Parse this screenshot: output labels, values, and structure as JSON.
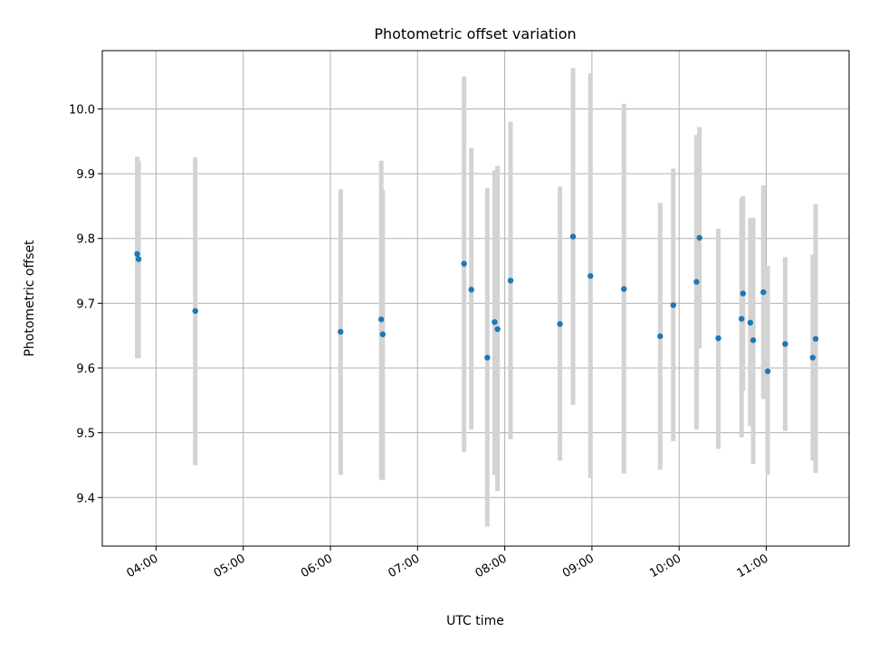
{
  "chart_data": {
    "type": "scatter",
    "title": "Photometric offset variation",
    "xlabel": "UTC time",
    "ylabel": "Photometric offset",
    "x_axis_kind": "time",
    "xlim": [
      "03:23",
      "11:57"
    ],
    "ylim": [
      9.325,
      10.09
    ],
    "x_ticks": [
      "04:00",
      "05:00",
      "06:00",
      "07:00",
      "08:00",
      "09:00",
      "10:00",
      "11:00"
    ],
    "y_ticks": [
      "9.4",
      "9.5",
      "9.6",
      "9.7",
      "9.8",
      "9.9",
      "10.0"
    ],
    "grid": true,
    "colors": {
      "point": "#1f77b4",
      "errorbar": "#d3d3d3"
    },
    "points": [
      {
        "t": "03:47",
        "y": 9.776,
        "lo": 9.615,
        "hi": 9.926
      },
      {
        "t": "03:48",
        "y": 9.768,
        "lo": 9.615,
        "hi": 9.92
      },
      {
        "t": "04:27",
        "y": 9.688,
        "lo": 9.45,
        "hi": 9.925
      },
      {
        "t": "06:07",
        "y": 9.656,
        "lo": 9.435,
        "hi": 9.876
      },
      {
        "t": "06:35",
        "y": 9.675,
        "lo": 9.428,
        "hi": 9.92
      },
      {
        "t": "06:36",
        "y": 9.652,
        "lo": 9.427,
        "hi": 9.875
      },
      {
        "t": "07:32",
        "y": 9.761,
        "lo": 9.47,
        "hi": 10.05
      },
      {
        "t": "07:37",
        "y": 9.721,
        "lo": 9.505,
        "hi": 9.94
      },
      {
        "t": "07:48",
        "y": 9.616,
        "lo": 9.355,
        "hi": 9.878
      },
      {
        "t": "07:53",
        "y": 9.671,
        "lo": 9.435,
        "hi": 9.905
      },
      {
        "t": "07:55",
        "y": 9.66,
        "lo": 9.41,
        "hi": 9.912
      },
      {
        "t": "08:04",
        "y": 9.735,
        "lo": 9.49,
        "hi": 9.98
      },
      {
        "t": "08:38",
        "y": 9.668,
        "lo": 9.457,
        "hi": 9.88
      },
      {
        "t": "08:47",
        "y": 9.803,
        "lo": 9.543,
        "hi": 10.063
      },
      {
        "t": "08:59",
        "y": 9.742,
        "lo": 9.43,
        "hi": 10.055
      },
      {
        "t": "09:22",
        "y": 9.722,
        "lo": 9.437,
        "hi": 10.008
      },
      {
        "t": "09:47",
        "y": 9.649,
        "lo": 9.443,
        "hi": 9.855
      },
      {
        "t": "09:56",
        "y": 9.697,
        "lo": 9.487,
        "hi": 9.908
      },
      {
        "t": "10:12",
        "y": 9.733,
        "lo": 9.505,
        "hi": 9.96
      },
      {
        "t": "10:14",
        "y": 9.801,
        "lo": 9.63,
        "hi": 9.972
      },
      {
        "t": "10:27",
        "y": 9.646,
        "lo": 9.475,
        "hi": 9.815
      },
      {
        "t": "10:43",
        "y": 9.676,
        "lo": 9.493,
        "hi": 9.862
      },
      {
        "t": "10:44",
        "y": 9.715,
        "lo": 9.565,
        "hi": 9.865
      },
      {
        "t": "10:49",
        "y": 9.67,
        "lo": 9.51,
        "hi": 9.832
      },
      {
        "t": "10:51",
        "y": 9.643,
        "lo": 9.452,
        "hi": 9.832
      },
      {
        "t": "10:58",
        "y": 9.717,
        "lo": 9.552,
        "hi": 9.882
      },
      {
        "t": "11:01",
        "y": 9.595,
        "lo": 9.435,
        "hi": 9.758
      },
      {
        "t": "11:13",
        "y": 9.637,
        "lo": 9.503,
        "hi": 9.771
      },
      {
        "t": "11:32",
        "y": 9.616,
        "lo": 9.457,
        "hi": 9.775
      },
      {
        "t": "11:34",
        "y": 9.645,
        "lo": 9.438,
        "hi": 9.853
      }
    ]
  }
}
